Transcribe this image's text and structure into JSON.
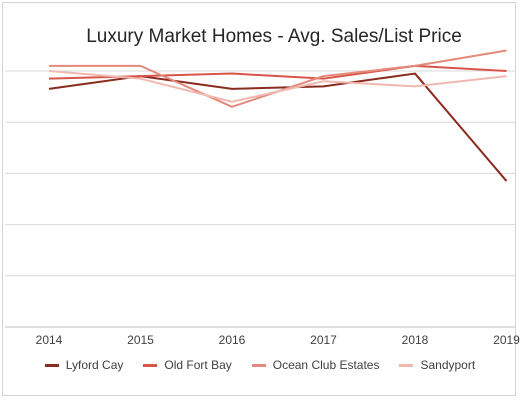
{
  "chart_data": {
    "type": "line",
    "title": "Luxury Market Homes - Avg. Sales/List Price",
    "xlabel": "",
    "ylabel": "",
    "x": [
      "2014",
      "2015",
      "2016",
      "2017",
      "2018",
      "2019"
    ],
    "ylim": [
      0,
      100
    ],
    "y_ticks": [
      0,
      20,
      40,
      60,
      80,
      100
    ],
    "y_tick_labels_visible": false,
    "grid": true,
    "legend_position": "bottom",
    "series": [
      {
        "name": "Lyford Cay",
        "color": "#8b2b1f",
        "values": [
          93,
          98,
          93,
          94,
          99,
          57
        ]
      },
      {
        "name": "Old Fort Bay",
        "color": "#d9554a",
        "values": [
          97,
          98,
          99,
          97,
          102,
          100
        ]
      },
      {
        "name": "Ocean Club Estates",
        "color": "#e38a7c",
        "values": [
          102,
          102,
          86,
          98,
          102,
          108
        ]
      },
      {
        "name": "Sandyport",
        "color": "#f0b9b0",
        "values": [
          100,
          97,
          88,
          96,
          94,
          98
        ]
      }
    ]
  }
}
